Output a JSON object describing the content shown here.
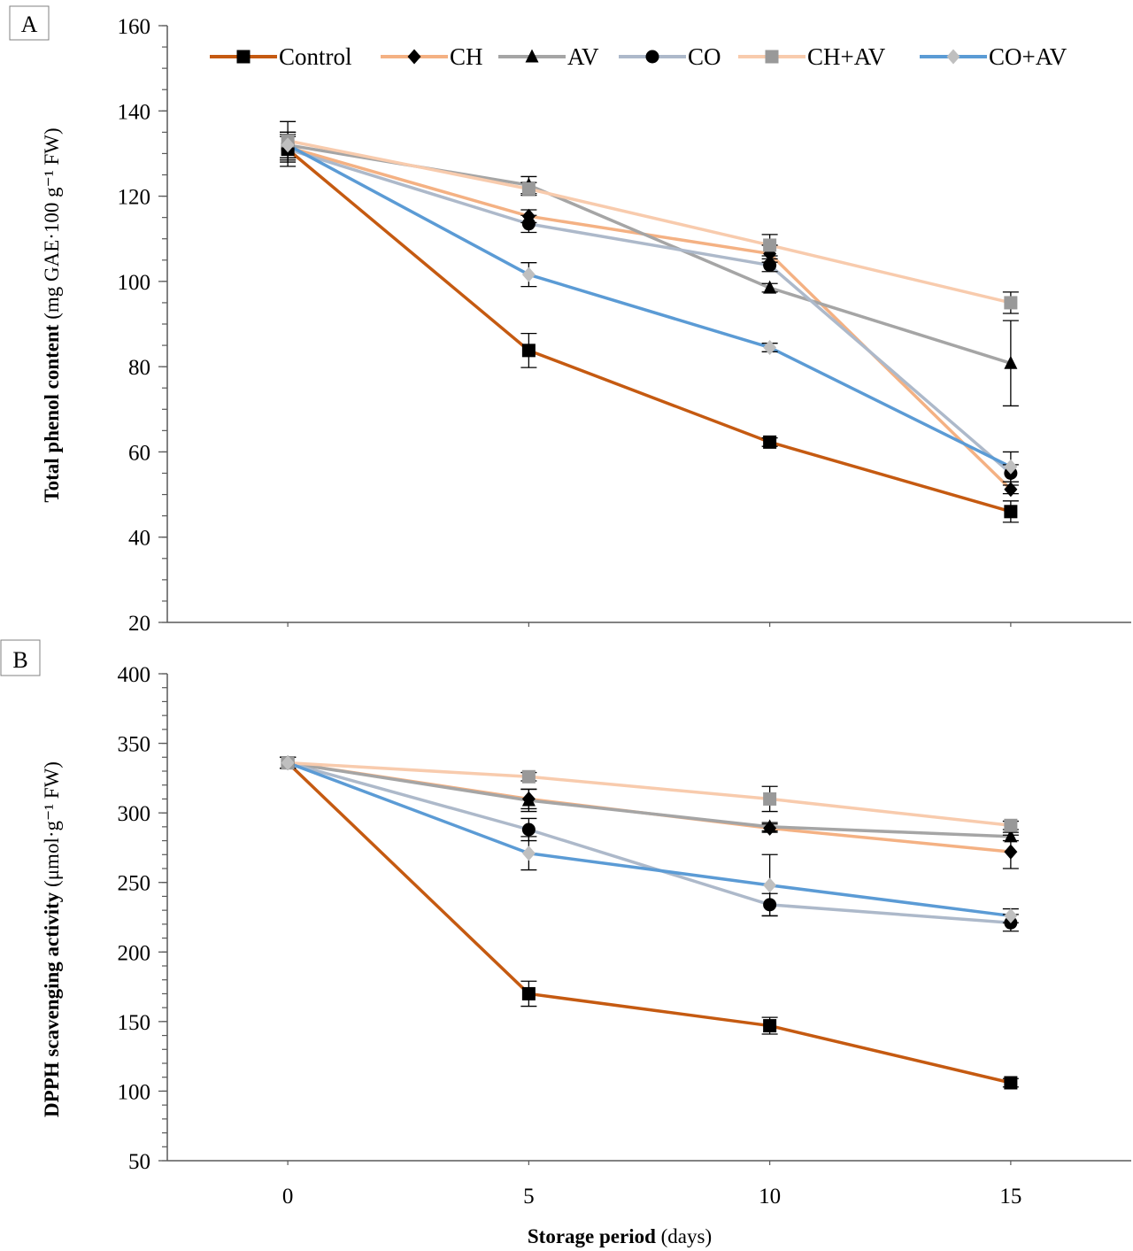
{
  "chart_data": [
    {
      "panel_label": "A",
      "type": "line",
      "title": "",
      "xlabel": "",
      "ylabel_bold": "Total phenol content",
      "ylabel_unit": "(mg GAE·100 g⁻¹ FW)",
      "ylim": [
        20,
        160
      ],
      "yticks": [
        20,
        40,
        60,
        80,
        100,
        120,
        140,
        160
      ],
      "y_minor_step": 5,
      "xlim": [
        -2.5,
        17.5
      ],
      "x": [
        0,
        5,
        10,
        15
      ],
      "grid": false,
      "legend_position": "top",
      "series": [
        {
          "name": "Control",
          "values": [
            131,
            83.8,
            62.3,
            46.0
          ],
          "errors": [
            4,
            4,
            1,
            2.5
          ]
        },
        {
          "name": "CH",
          "values": [
            131.5,
            115.3,
            106.5,
            51.2
          ],
          "errors": [
            3,
            1.5,
            2,
            1
          ]
        },
        {
          "name": "AV",
          "values": [
            132,
            122.6,
            98.5,
            80.8
          ],
          "errors": [
            3,
            2,
            1,
            10
          ]
        },
        {
          "name": "CO",
          "values": [
            131,
            113.5,
            103.8,
            55.0
          ],
          "errors": [
            3,
            2,
            1.5,
            2
          ]
        },
        {
          "name": "CH+AV",
          "values": [
            133,
            121.7,
            108.5,
            95.0
          ],
          "errors": [
            4.5,
            1.5,
            2.5,
            2.5
          ]
        },
        {
          "name": "CO+AV",
          "values": [
            132,
            101.6,
            84.5,
            56.5
          ],
          "errors": [
            3,
            2.8,
            1,
            3.5
          ]
        }
      ]
    },
    {
      "panel_label": "B",
      "type": "line",
      "title": "",
      "xlabel_bold": "Storage period",
      "xlabel_unit": "(days)",
      "ylabel_bold": "DPPH scavenging activity",
      "ylabel_unit": "(μmol·g⁻¹ FW)",
      "ylim": [
        50,
        400
      ],
      "yticks": [
        50,
        100,
        150,
        200,
        250,
        300,
        350,
        400
      ],
      "y_minor_step": 10,
      "xlim": [
        -2.5,
        17.5
      ],
      "x": [
        0,
        5,
        10,
        15
      ],
      "xticks": [
        "0",
        "5",
        "10",
        "15"
      ],
      "grid": false,
      "series": [
        {
          "name": "Control",
          "values": [
            336,
            170,
            147,
            106
          ],
          "errors": [
            4,
            9,
            6,
            3
          ]
        },
        {
          "name": "CH",
          "values": [
            336,
            310,
            289,
            272
          ],
          "errors": [
            4,
            7,
            3,
            12
          ]
        },
        {
          "name": "AV",
          "values": [
            336,
            309,
            290,
            283
          ],
          "errors": [
            4,
            8,
            3,
            3
          ]
        },
        {
          "name": "CO",
          "values": [
            336,
            288,
            234,
            221
          ],
          "errors": [
            4,
            8,
            8,
            6
          ]
        },
        {
          "name": "CH+AV",
          "values": [
            336,
            326,
            310,
            291
          ],
          "errors": [
            4,
            3,
            9,
            3
          ]
        },
        {
          "name": "CO+AV",
          "values": [
            336,
            271,
            248,
            226
          ],
          "errors": [
            4,
            12,
            22,
            5
          ]
        }
      ]
    }
  ],
  "legend": [
    {
      "name": "Control",
      "line_color": "#C55A11",
      "marker": "square",
      "marker_color": "#000000"
    },
    {
      "name": "CH",
      "line_color": "#F4B183",
      "marker": "diamond",
      "marker_color": "#000000"
    },
    {
      "name": "AV",
      "line_color": "#A5A5A5",
      "marker": "triangle",
      "marker_color": "#000000"
    },
    {
      "name": "CO",
      "line_color": "#ADB9CA",
      "marker": "circle",
      "marker_color": "#000000"
    },
    {
      "name": "CH+AV",
      "line_color": "#F8CBAD",
      "marker": "square",
      "marker_color": "#999999"
    },
    {
      "name": "CO+AV",
      "line_color": "#5B9BD5",
      "marker": "diamond",
      "marker_color": "#BFBFBF"
    }
  ]
}
